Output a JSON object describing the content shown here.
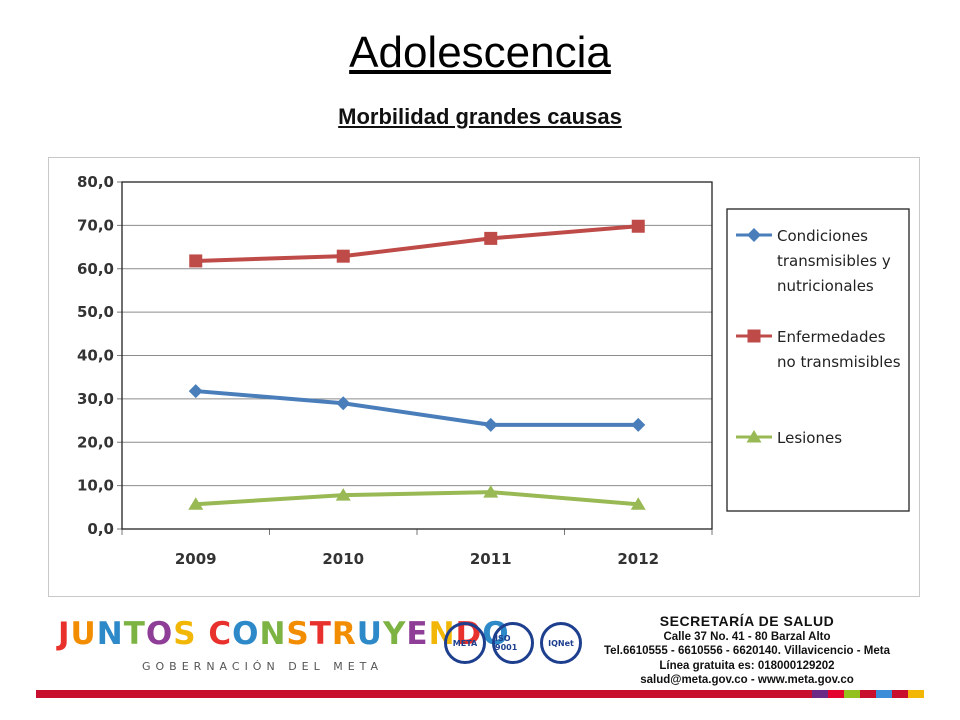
{
  "slide": {
    "title": "Adolescencia",
    "subtitle": "Morbilidad grandes causas"
  },
  "chart_data": {
    "type": "line",
    "title": "",
    "xlabel": "",
    "ylabel": "",
    "categories": [
      "2009",
      "2010",
      "2011",
      "2012"
    ],
    "ylim": [
      0,
      80
    ],
    "yticks": [
      "0,0",
      "10,0",
      "20,0",
      "30,0",
      "40,0",
      "50,0",
      "60,0",
      "70,0",
      "80,0"
    ],
    "grid": true,
    "legend_position": "right",
    "series": [
      {
        "name": "Condiciones transmisibles y nutricionales",
        "legend_lines": [
          "Condiciones",
          "transmisibles y",
          "nutricionales"
        ],
        "values": [
          31.8,
          29.0,
          24.0,
          24.0
        ],
        "color": "#4a7ebb",
        "marker": "diamond"
      },
      {
        "name": "Enfermedades no transmisibles",
        "legend_lines": [
          "Enfermedades",
          "no transmisibles"
        ],
        "values": [
          61.8,
          62.9,
          67.0,
          69.8
        ],
        "color": "#be4b48",
        "marker": "square"
      },
      {
        "name": "Lesiones",
        "legend_lines": [
          "Lesiones"
        ],
        "values": [
          5.7,
          7.8,
          8.5,
          5.7
        ],
        "color": "#98b954",
        "marker": "triangle"
      }
    ]
  },
  "footer": {
    "logo_main": "JUNTOS CONSTRUYENDO",
    "logo_sub": "GOBERNACIÓN DEL META",
    "seals": [
      "META",
      "ISO 9001",
      "IQNet"
    ],
    "contact_header": "SECRETARÍA DE SALUD",
    "contact_lines": [
      "Calle 37 No. 41 - 80 Barzal Alto",
      "Tel.6610555 - 6610556 - 6620140. Villavicencio - Meta",
      "Línea gratuita es: 018000129202",
      "salud@meta.gov.co - www.meta.gov.co"
    ],
    "stripe_colors": [
      "#c8102e",
      "#6a2a86",
      "#e4032e",
      "#93c01f",
      "#c8102e",
      "#3c8dd8",
      "#c8102e",
      "#f2b705"
    ]
  }
}
